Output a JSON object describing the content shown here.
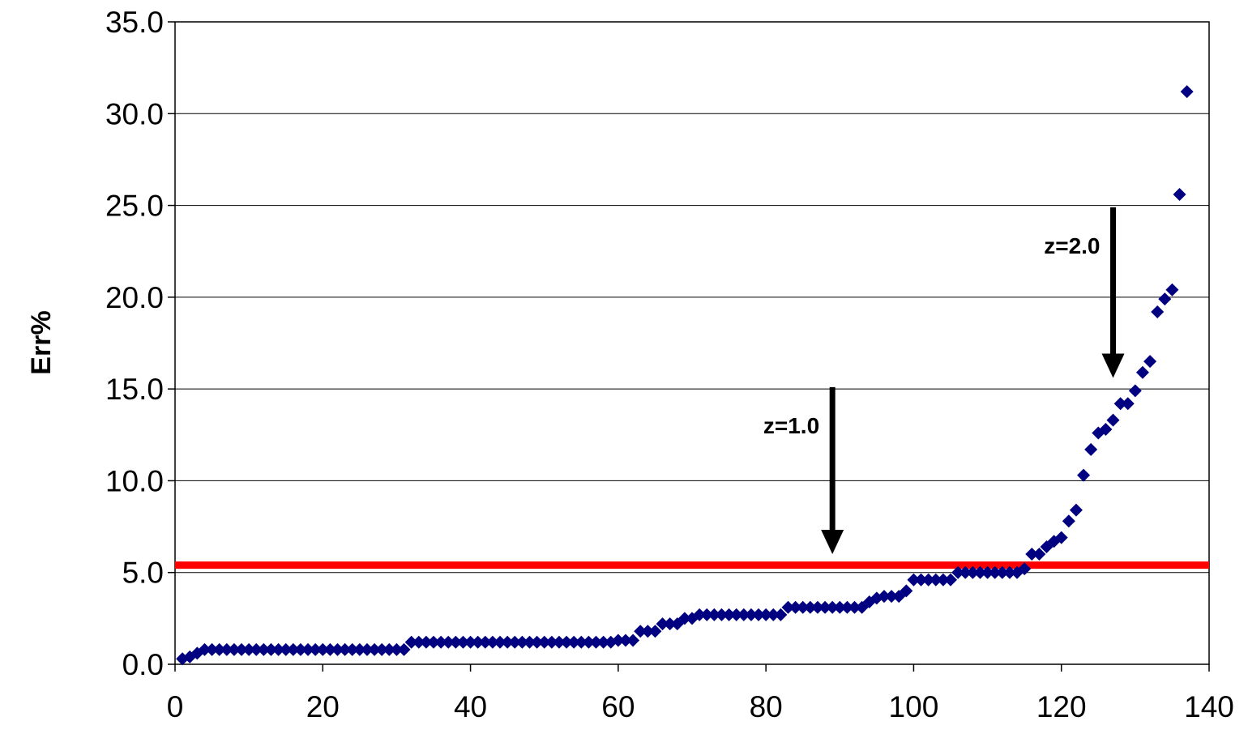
{
  "chart_data": {
    "type": "scatter",
    "title": "",
    "xlabel": "",
    "ylabel": "Err%",
    "xlim": [
      0,
      140
    ],
    "ylim": [
      0,
      35
    ],
    "x_ticks": [
      "0",
      "20",
      "40",
      "60",
      "80",
      "100",
      "120",
      "140"
    ],
    "y_ticks": [
      "0.0",
      "5.0",
      "10.0",
      "15.0",
      "20.0",
      "25.0",
      "30.0",
      "35.0"
    ],
    "grid": "horizontal",
    "marker_color": "#000080",
    "threshold": {
      "y": 5.4,
      "color": "#ff0000"
    },
    "annotations": [
      {
        "label": "z=1.0",
        "x": 89,
        "y_from": 15.1,
        "y_to": 6.0
      },
      {
        "label": "z=2.0",
        "x": 127,
        "y_from": 24.9,
        "y_to": 15.6
      }
    ],
    "series": [
      {
        "x": [
          1,
          2,
          3,
          4,
          5,
          6,
          7,
          8,
          9,
          10,
          11,
          12,
          13,
          14,
          15,
          16,
          17,
          18,
          19,
          20,
          21,
          22,
          23,
          24,
          25,
          26,
          27,
          28,
          29,
          30,
          31,
          32,
          33,
          34,
          35,
          36,
          37,
          38,
          39,
          40,
          41,
          42,
          43,
          44,
          45,
          46,
          47,
          48,
          49,
          50,
          51,
          52,
          53,
          54,
          55,
          56,
          57,
          58,
          59,
          60,
          61,
          62,
          63,
          64,
          65,
          66,
          67,
          68,
          69,
          70,
          71,
          72,
          73,
          74,
          75,
          76,
          77,
          78,
          79,
          80,
          81,
          82,
          83,
          84,
          85,
          86,
          87,
          88,
          89,
          90,
          91,
          92,
          93,
          94,
          95,
          96,
          97,
          98,
          99,
          100,
          101,
          102,
          103,
          104,
          105,
          106,
          107,
          108,
          109,
          110,
          111,
          112,
          113,
          114,
          115,
          116,
          117,
          118,
          119,
          120,
          121,
          122,
          123,
          124,
          125,
          126,
          127,
          128,
          129,
          130,
          131,
          132,
          133,
          134,
          135,
          136,
          137
        ],
        "y": [
          0.3,
          0.4,
          0.6,
          0.8,
          0.8,
          0.8,
          0.8,
          0.8,
          0.8,
          0.8,
          0.8,
          0.8,
          0.8,
          0.8,
          0.8,
          0.8,
          0.8,
          0.8,
          0.8,
          0.8,
          0.8,
          0.8,
          0.8,
          0.8,
          0.8,
          0.8,
          0.8,
          0.8,
          0.8,
          0.8,
          0.8,
          1.2,
          1.2,
          1.2,
          1.2,
          1.2,
          1.2,
          1.2,
          1.2,
          1.2,
          1.2,
          1.2,
          1.2,
          1.2,
          1.2,
          1.2,
          1.2,
          1.2,
          1.2,
          1.2,
          1.2,
          1.2,
          1.2,
          1.2,
          1.2,
          1.2,
          1.2,
          1.2,
          1.2,
          1.3,
          1.3,
          1.3,
          1.8,
          1.8,
          1.8,
          2.2,
          2.2,
          2.2,
          2.5,
          2.5,
          2.7,
          2.7,
          2.7,
          2.7,
          2.7,
          2.7,
          2.7,
          2.7,
          2.7,
          2.7,
          2.7,
          2.7,
          3.1,
          3.1,
          3.1,
          3.1,
          3.1,
          3.1,
          3.1,
          3.1,
          3.1,
          3.1,
          3.1,
          3.4,
          3.6,
          3.7,
          3.7,
          3.7,
          4.0,
          4.6,
          4.6,
          4.6,
          4.6,
          4.6,
          4.6,
          5.0,
          5.0,
          5.0,
          5.0,
          5.0,
          5.0,
          5.0,
          5.0,
          5.0,
          5.2,
          6.0,
          6.0,
          6.4,
          6.7,
          6.9,
          7.8,
          8.4,
          10.3,
          11.7,
          12.6,
          12.8,
          13.3,
          14.2,
          14.2,
          14.9,
          15.9,
          16.5,
          19.2,
          19.9,
          20.4,
          25.6,
          31.2
        ]
      }
    ]
  }
}
